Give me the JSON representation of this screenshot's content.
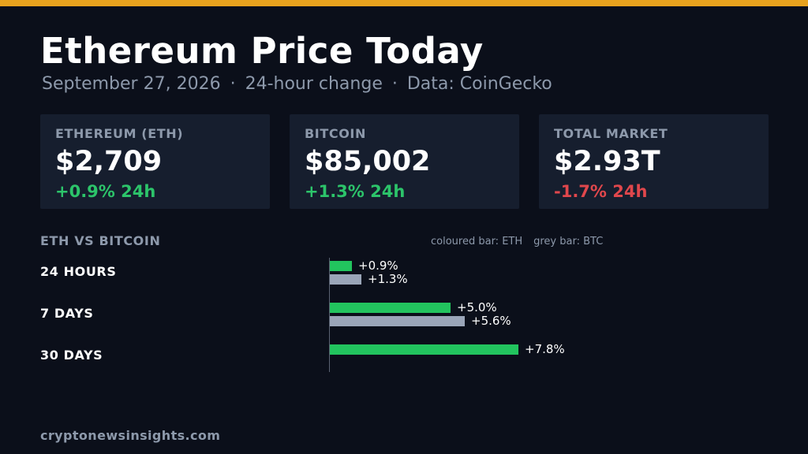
{
  "header": {
    "title": "Ethereum Price Today",
    "date": "September 27, 2026",
    "period": "24-hour change",
    "source": "Data: CoinGecko",
    "separator": "·"
  },
  "cards": [
    {
      "label": "ETHEREUM (ETH)",
      "value": "$2,709",
      "change": "+0.9% 24h",
      "direction": "up"
    },
    {
      "label": "BITCOIN",
      "value": "$85,002",
      "change": "+1.3% 24h",
      "direction": "up"
    },
    {
      "label": "TOTAL MARKET",
      "value": "$2.93T",
      "change": "-1.7% 24h",
      "direction": "down"
    }
  ],
  "comparison": {
    "title": "ETH VS BITCOIN",
    "legend_eth": "coloured bar: ETH",
    "legend_btc": "grey bar: BTC"
  },
  "chart_data": {
    "type": "bar",
    "title": "ETH VS BITCOIN",
    "categories": [
      "24 HOURS",
      "7 DAYS",
      "30 DAYS"
    ],
    "series": [
      {
        "name": "ETH",
        "values": [
          0.9,
          5.0,
          7.8
        ],
        "labels": [
          "+0.9%",
          "+5.0%",
          "+7.8%"
        ],
        "color": "#22c45e"
      },
      {
        "name": "BTC",
        "values": [
          1.3,
          5.6,
          null
        ],
        "labels": [
          "+1.3%",
          "+5.6%",
          null
        ],
        "color": "#9aa5b8"
      }
    ]
  },
  "colors": {
    "accent": "#e8a21e",
    "positive": "#2cc46a",
    "negative": "#e0474c",
    "background": "#0b0f1a",
    "card": "#161e2e"
  },
  "footer": {
    "site": "cryptonewsinsights.com"
  }
}
